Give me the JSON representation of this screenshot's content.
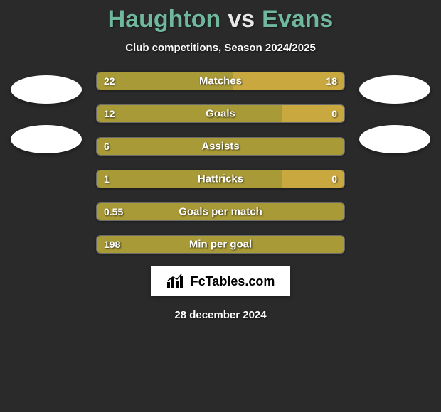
{
  "title": {
    "player1": "Haughton",
    "vs": "vs",
    "player2": "Evans",
    "name_color": "#6fb89e",
    "vs_color": "#e8e8e8"
  },
  "subtitle": "Club competitions, Season 2024/2025",
  "colors": {
    "background": "#2a2a2a",
    "bar_left": "#a89a36",
    "bar_right": "#c9a93f",
    "bar_border": "rgba(255,255,255,0.3)",
    "photo_bg": "#ffffff"
  },
  "stats": [
    {
      "label": "Matches",
      "left_val": "22",
      "right_val": "18",
      "left_pct": 55,
      "right_pct": 45
    },
    {
      "label": "Goals",
      "left_val": "12",
      "right_val": "0",
      "left_pct": 75,
      "right_pct": 25
    },
    {
      "label": "Assists",
      "left_val": "6",
      "right_val": "",
      "left_pct": 100,
      "right_pct": 0
    },
    {
      "label": "Hattricks",
      "left_val": "1",
      "right_val": "0",
      "left_pct": 75,
      "right_pct": 25
    },
    {
      "label": "Goals per match",
      "left_val": "0.55",
      "right_val": "",
      "left_pct": 100,
      "right_pct": 0
    },
    {
      "label": "Min per goal",
      "left_val": "198",
      "right_val": "",
      "left_pct": 100,
      "right_pct": 0
    }
  ],
  "logo": {
    "text": "FcTables.com"
  },
  "date": "28 december 2024"
}
